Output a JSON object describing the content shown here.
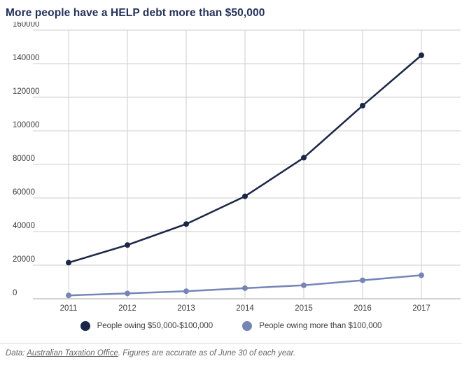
{
  "title": "More people have a HELP debt more than $50,000",
  "title_color": "#24325a",
  "chart_data": {
    "type": "line",
    "x": [
      "2011",
      "2012",
      "2013",
      "2014",
      "2015",
      "2016",
      "2017"
    ],
    "series": [
      {
        "name": "People owing $50,000-$100,000",
        "color": "#1b2746",
        "values": [
          21500,
          32000,
          44500,
          61000,
          84000,
          115000,
          145000
        ]
      },
      {
        "name": "People owing more than $100,000",
        "color": "#7585b8",
        "values": [
          2000,
          3200,
          4500,
          6300,
          8000,
          11000,
          14000
        ]
      }
    ],
    "xlabel": "",
    "ylabel": "",
    "ylim": [
      0,
      160000
    ],
    "ytick_step": 20000,
    "ytick_labels": [
      "0",
      "20000",
      "40000",
      "60000",
      "80000",
      "100000",
      "120000",
      "140000",
      "160000"
    ],
    "grid": true,
    "grid_color": "#cecece",
    "axis_color": "#a3a3a3",
    "tick_label_color": "#3d3d3d",
    "legend_position": "bottom-center"
  },
  "footer": {
    "prefix": "Data: ",
    "link_text": "Australian Taxation Office",
    "suffix": ". Figures are accurate as of June 30 of each year."
  }
}
